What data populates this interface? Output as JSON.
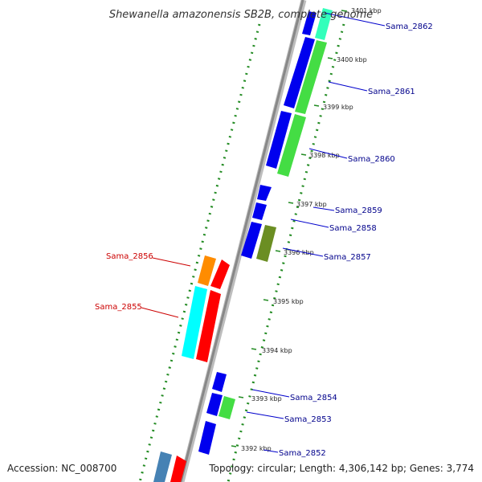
{
  "title": "Shewanella amazonensis SB2B, complete genome",
  "accession_text": "Accession: NC_008700",
  "topology_text": "Topology: circular; Length: 4,306,142 bp; Genes: 3,774",
  "colors": {
    "blue_gene": "#0000ee",
    "label_blue": "#00008b",
    "label_red": "#cc0000",
    "red_gene": "#ff0000",
    "cyan_gene": "#00ffff",
    "green_gene": "#44dd44",
    "olive_gene": "#6b8e23",
    "orange_gene": "#ff8c00",
    "steel_gene": "#4682b4",
    "teal_gene": "#33ffbb",
    "tick_green": "#228b22",
    "backbone": "#888888"
  },
  "kbp_ticks": [
    {
      "label": "3401 kbp"
    },
    {
      "label": "3400 kbp"
    },
    {
      "label": "3399 kbp"
    },
    {
      "label": "3398 kbp"
    },
    {
      "label": "3397 kbp"
    },
    {
      "label": "3396 kbp"
    },
    {
      "label": "3395 kbp"
    },
    {
      "label": "3394 kbp"
    },
    {
      "label": "3393 kbp"
    },
    {
      "label": "3392 kbp"
    }
  ],
  "gene_labels": [
    {
      "name": "Sama_2862",
      "color": "#00008b"
    },
    {
      "name": "Sama_2861",
      "color": "#00008b"
    },
    {
      "name": "Sama_2860",
      "color": "#00008b"
    },
    {
      "name": "Sama_2859",
      "color": "#00008b"
    },
    {
      "name": "Sama_2858",
      "color": "#00008b"
    },
    {
      "name": "Sama_2857",
      "color": "#00008b"
    },
    {
      "name": "Sama_2856",
      "color": "#cc0000"
    },
    {
      "name": "Sama_2855",
      "color": "#cc0000"
    },
    {
      "name": "Sama_2854",
      "color": "#00008b"
    },
    {
      "name": "Sama_2853",
      "color": "#00008b"
    },
    {
      "name": "Sama_2852",
      "color": "#00008b"
    }
  ]
}
